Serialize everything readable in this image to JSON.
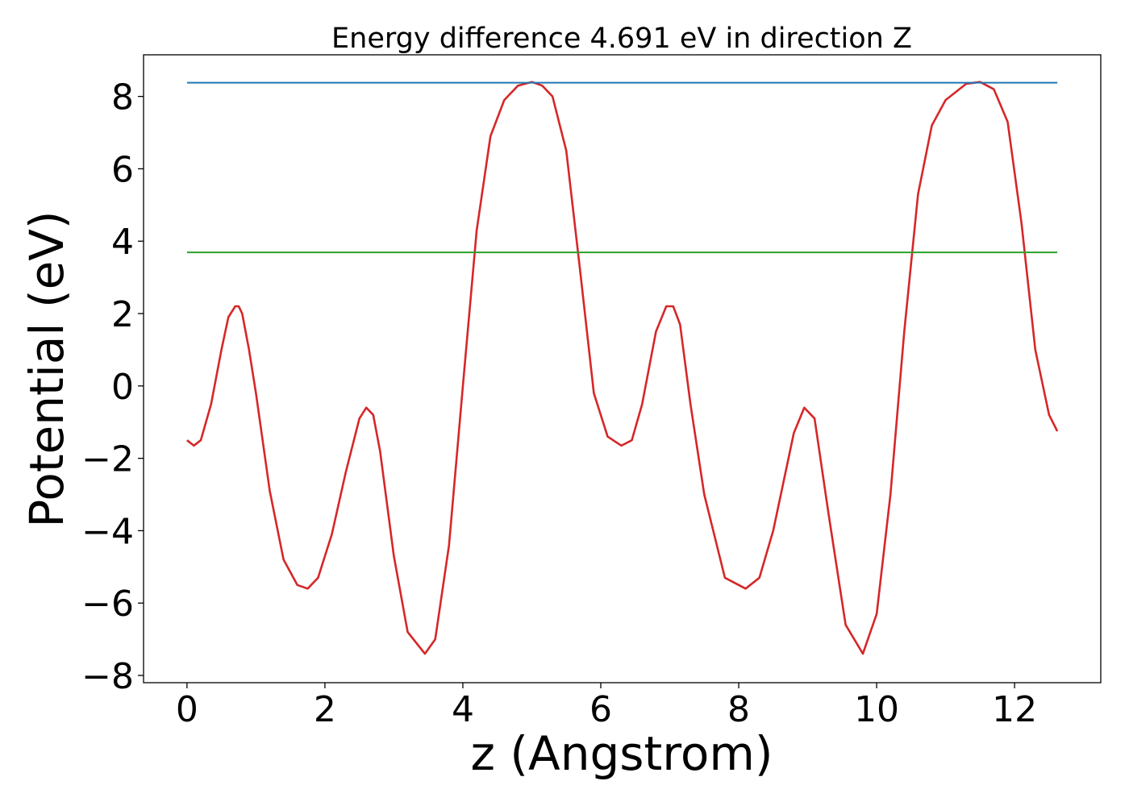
{
  "chart_data": {
    "type": "line",
    "title": "Energy difference 4.691 eV in direction Z",
    "xlabel": "z (Angstrom)",
    "ylabel": "Potential (eV)",
    "xlim": [
      -0.63,
      13.25
    ],
    "ylim": [
      -8.2,
      9.15
    ],
    "xticks": [
      0,
      2,
      4,
      6,
      8,
      10,
      12
    ],
    "yticks": [
      -8,
      -6,
      -4,
      -2,
      0,
      2,
      4,
      6,
      8
    ],
    "grid": false,
    "series": [
      {
        "color": "#d62728",
        "x": [
          0,
          0.1,
          0.2,
          0.35,
          0.5,
          0.6,
          0.7,
          0.75,
          0.8,
          0.9,
          1.0,
          1.2,
          1.4,
          1.6,
          1.75,
          1.9,
          2.1,
          2.3,
          2.5,
          2.6,
          2.7,
          2.8,
          3.0,
          3.2,
          3.45,
          3.6,
          3.8,
          4.0,
          4.2,
          4.4,
          4.6,
          4.8,
          5.0,
          5.15,
          5.3,
          5.5,
          5.7,
          5.9,
          6.1,
          6.3,
          6.45,
          6.6,
          6.8,
          6.95,
          7.05,
          7.15,
          7.3,
          7.5,
          7.8,
          8.1,
          8.3,
          8.5,
          8.8,
          8.95,
          9.1,
          9.3,
          9.55,
          9.8,
          10.0,
          10.2,
          10.4,
          10.6,
          10.8,
          11.0,
          11.3,
          11.5,
          11.7,
          11.9,
          12.1,
          12.3,
          12.5,
          12.62
        ],
        "y": [
          -1.5,
          -1.65,
          -1.5,
          -0.5,
          1.0,
          1.9,
          2.2,
          2.2,
          2.0,
          1.0,
          -0.2,
          -2.9,
          -4.8,
          -5.5,
          -5.6,
          -5.3,
          -4.1,
          -2.4,
          -0.9,
          -0.6,
          -0.8,
          -1.8,
          -4.7,
          -6.8,
          -7.4,
          -7.0,
          -4.4,
          0.0,
          4.3,
          6.9,
          7.9,
          8.3,
          8.4,
          8.3,
          8.0,
          6.5,
          3.2,
          -0.2,
          -1.4,
          -1.65,
          -1.5,
          -0.5,
          1.5,
          2.2,
          2.2,
          1.7,
          -0.5,
          -3.0,
          -5.3,
          -5.6,
          -5.3,
          -4.0,
          -1.3,
          -0.6,
          -0.9,
          -3.5,
          -6.6,
          -7.4,
          -6.3,
          -3.0,
          1.5,
          5.3,
          7.2,
          7.9,
          8.35,
          8.4,
          8.2,
          7.3,
          4.5,
          1.0,
          -0.8,
          -1.25
        ]
      },
      {
        "color": "#1f77b4",
        "x": [
          0,
          12.62
        ],
        "y": [
          8.38,
          8.38
        ]
      },
      {
        "color": "#2ca02c",
        "x": [
          0,
          12.62
        ],
        "y": [
          3.69,
          3.69
        ]
      }
    ]
  }
}
